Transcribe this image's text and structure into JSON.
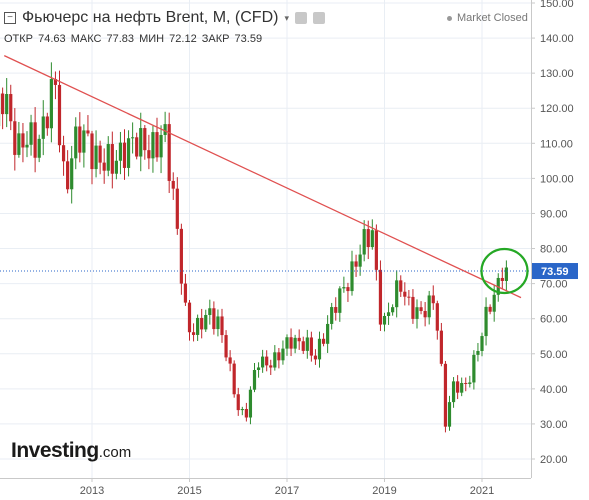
{
  "header": {
    "collapse_glyph": "⊟",
    "title": "Фьючерс на нефть Brent, M, (CFD)",
    "caret": "▾",
    "ohlc": {
      "open_label": "ОТКР",
      "open_value": "74.63",
      "high_label": "МАКС",
      "high_value": "77.83",
      "low_label": "МИН",
      "low_value": "72.12",
      "close_label": "ЗАКР",
      "close_value": "73.59"
    },
    "market_status": "Market Closed"
  },
  "branding": {
    "logo_main": "Investing",
    "logo_tld": ".com"
  },
  "colors": {
    "up_candle": "#2e8b2e",
    "down_candle": "#c0262b",
    "trendline": "#e05050",
    "highlight_circle": "#25a825",
    "last_price_bg": "#2a66c8",
    "grid": "#e9eef4"
  },
  "chart_data": {
    "type": "candlestick",
    "instrument": "Фьючерс на нефть Brent, M, (CFD)",
    "interval": "M",
    "y_ticks": [
      20,
      30,
      40,
      50,
      60,
      70,
      80,
      90,
      100,
      110,
      120,
      130,
      140,
      150
    ],
    "y_tick_labels": [
      "20.00",
      "30.00",
      "40.00",
      "50.00",
      "60.00",
      "70.00",
      "80.00",
      "90.00",
      "100.00",
      "110.00",
      "120.00",
      "130.00",
      "140.00",
      "150.00"
    ],
    "ylim": [
      16,
      152
    ],
    "x_tick_labels": [
      "2013",
      "2015",
      "2017",
      "2019",
      "2021"
    ],
    "x_tick_years": [
      2013,
      2015,
      2017,
      2019,
      2021
    ],
    "xlim": [
      2011.0,
      2022.2
    ],
    "last_price": 73.59,
    "last_price_label": "73.59",
    "trendline": {
      "x": [
        2011.2,
        2021.8
      ],
      "y": [
        135,
        66
      ]
    },
    "highlight": {
      "x": 2021.4,
      "y": 73.6
    },
    "anchors": [
      [
        2011.0,
        113
      ],
      [
        2011.2,
        125
      ],
      [
        2011.5,
        108
      ],
      [
        2011.9,
        112
      ],
      [
        2012.15,
        122
      ],
      [
        2012.25,
        124
      ],
      [
        2012.45,
        97
      ],
      [
        2012.6,
        110
      ],
      [
        2012.9,
        110
      ],
      [
        2013.2,
        106
      ],
      [
        2013.4,
        102
      ],
      [
        2013.7,
        111
      ],
      [
        2014.0,
        108
      ],
      [
        2014.4,
        112
      ],
      [
        2014.5,
        110
      ],
      [
        2014.75,
        86
      ],
      [
        2014.95,
        58
      ],
      [
        2015.1,
        55
      ],
      [
        2015.4,
        63
      ],
      [
        2015.6,
        58
      ],
      [
        2015.8,
        47
      ],
      [
        2016.0,
        35
      ],
      [
        2016.15,
        32
      ],
      [
        2016.4,
        48
      ],
      [
        2016.8,
        48
      ],
      [
        2017.1,
        55
      ],
      [
        2017.4,
        52
      ],
      [
        2017.55,
        48
      ],
      [
        2017.8,
        58
      ],
      [
        2018.1,
        66
      ],
      [
        2018.4,
        77
      ],
      [
        2018.75,
        84
      ],
      [
        2018.95,
        58
      ],
      [
        2019.1,
        62
      ],
      [
        2019.35,
        70
      ],
      [
        2019.5,
        65
      ],
      [
        2019.75,
        60
      ],
      [
        2020.0,
        66
      ],
      [
        2020.1,
        58
      ],
      [
        2020.25,
        30
      ],
      [
        2020.4,
        40
      ],
      [
        2020.7,
        42
      ],
      [
        2020.95,
        52
      ],
      [
        2021.15,
        65
      ],
      [
        2021.3,
        69
      ],
      [
        2021.42,
        73.6
      ],
      [
        2021.5,
        74.6
      ]
    ]
  }
}
